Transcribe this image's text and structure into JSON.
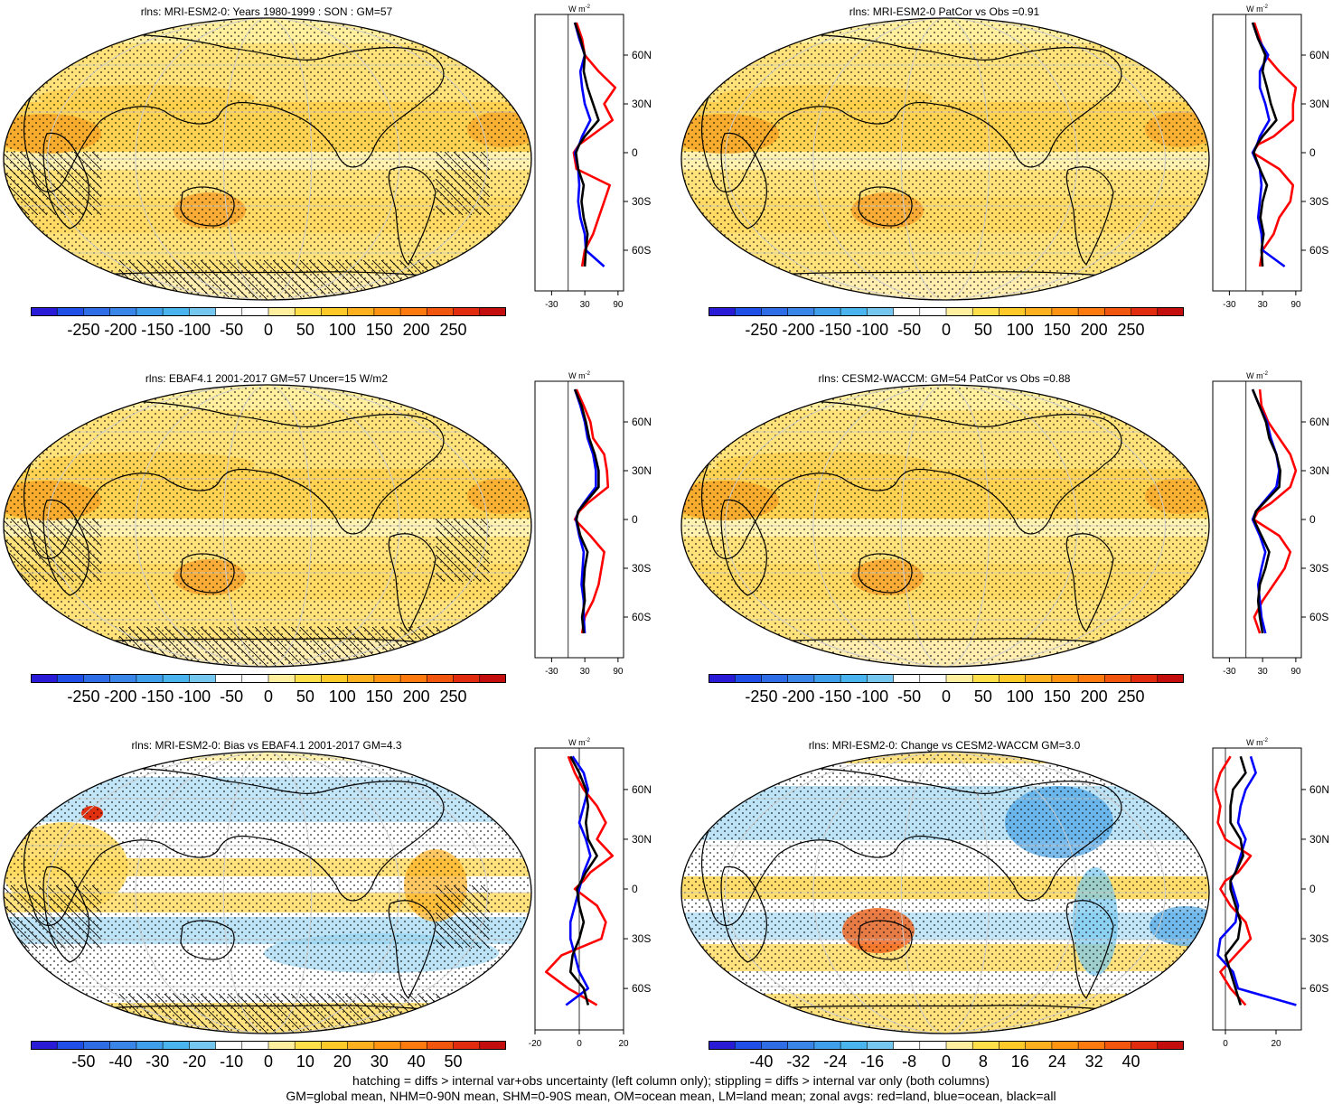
{
  "chart_data": [
    {
      "type": "heatmap",
      "title": "rlns: MRI-ESM2-0: Years 1980-1999 : SON : GM=57",
      "colorbar_ticks": [
        "-250",
        "-200",
        "-150",
        "-100",
        "-50",
        "0",
        "50",
        "100",
        "150",
        "200",
        "250"
      ],
      "zonal": {
        "unit": "W m",
        "unit_sup": "-2",
        "x_ticks": [
          "-30",
          "30",
          "90"
        ],
        "xlim": [
          -60,
          100
        ],
        "y_ticks": [
          "60N",
          "30N",
          "0",
          "30S",
          "60S"
        ],
        "series": [
          {
            "color": "#ff0000",
            "lat": [
              80,
              70,
              60,
              50,
              40,
              30,
              20,
              10,
              5,
              0,
              -10,
              -20,
              -30,
              -40,
              -50,
              -60,
              -70
            ],
            "values": [
              15,
              25,
              30,
              55,
              85,
              65,
              80,
              40,
              20,
              10,
              15,
              75,
              65,
              55,
              45,
              30,
              25
            ]
          },
          {
            "color": "#0000ff",
            "lat": [
              80,
              70,
              60,
              50,
              40,
              30,
              20,
              10,
              5,
              0,
              -10,
              -20,
              -30,
              -40,
              -50,
              -60,
              -70
            ],
            "values": [
              12,
              20,
              30,
              22,
              25,
              30,
              40,
              25,
              20,
              12,
              18,
              20,
              18,
              22,
              30,
              32,
              65
            ]
          },
          {
            "color": "#000000",
            "lat": [
              80,
              70,
              60,
              50,
              40,
              30,
              20,
              10,
              5,
              0,
              -10,
              -20,
              -30,
              -40,
              -50,
              -60,
              -70
            ],
            "values": [
              12,
              22,
              30,
              28,
              35,
              45,
              55,
              30,
              20,
              14,
              18,
              28,
              24,
              28,
              35,
              32,
              30
            ]
          }
        ]
      }
    },
    {
      "type": "heatmap",
      "title": "rlns: MRI-ESM2-0 PatCor vs Obs =0.91",
      "colorbar_ticks": [
        "-250",
        "-200",
        "-150",
        "-100",
        "-50",
        "0",
        "50",
        "100",
        "150",
        "200",
        "250"
      ],
      "zonal": {
        "unit": "W m",
        "unit_sup": "-2",
        "x_ticks": [
          "-30",
          "30",
          "90"
        ],
        "xlim": [
          -60,
          100
        ],
        "y_ticks": [
          "60N",
          "30N",
          "0",
          "30S",
          "60S"
        ],
        "series": [
          {
            "color": "#ff0000",
            "lat": [
              80,
              70,
              60,
              50,
              40,
              30,
              20,
              10,
              5,
              0,
              -10,
              -20,
              -30,
              -40,
              -50,
              -60,
              -70
            ],
            "values": [
              15,
              25,
              35,
              60,
              90,
              85,
              85,
              50,
              22,
              12,
              60,
              85,
              80,
              60,
              50,
              30,
              25
            ]
          },
          {
            "color": "#0000ff",
            "lat": [
              80,
              70,
              60,
              50,
              40,
              30,
              20,
              10,
              5,
              0,
              -10,
              -20,
              -30,
              -40,
              -50,
              -60,
              -70
            ],
            "values": [
              12,
              22,
              40,
              25,
              25,
              35,
              42,
              25,
              20,
              12,
              25,
              28,
              25,
              22,
              28,
              30,
              70
            ]
          },
          {
            "color": "#000000",
            "lat": [
              80,
              70,
              60,
              50,
              40,
              30,
              20,
              10,
              5,
              0,
              -10,
              -20,
              -30,
              -40,
              -50,
              -60,
              -70
            ],
            "values": [
              12,
              22,
              35,
              30,
              38,
              45,
              55,
              30,
              20,
              14,
              25,
              38,
              30,
              26,
              32,
              28,
              30
            ]
          }
        ]
      }
    },
    {
      "type": "heatmap",
      "title": "rlns: EBAF4.1 2001-2017 GM=57 Uncer=15 W/m2",
      "colorbar_ticks": [
        "-250",
        "-200",
        "-150",
        "-100",
        "-50",
        "0",
        "50",
        "100",
        "150",
        "200",
        "250"
      ],
      "zonal": {
        "unit": "W m",
        "unit_sup": "-2",
        "x_ticks": [
          "-30",
          "30",
          "90"
        ],
        "xlim": [
          -60,
          100
        ],
        "y_ticks": [
          "60N",
          "30N",
          "0",
          "30S",
          "60S"
        ],
        "series": [
          {
            "color": "#ff0000",
            "lat": [
              80,
              70,
              60,
              50,
              40,
              30,
              20,
              10,
              5,
              0,
              -10,
              -20,
              -30,
              -40,
              -50,
              -60,
              -70
            ],
            "values": [
              15,
              28,
              40,
              45,
              65,
              70,
              72,
              35,
              20,
              12,
              40,
              65,
              60,
              55,
              45,
              30,
              25
            ]
          },
          {
            "color": "#0000ff",
            "lat": [
              80,
              70,
              60,
              50,
              40,
              30,
              20,
              10,
              5,
              0,
              -10,
              -20,
              -30,
              -40,
              -50,
              -60,
              -70
            ],
            "values": [
              12,
              22,
              30,
              35,
              45,
              50,
              50,
              28,
              18,
              14,
              20,
              28,
              26,
              24,
              28,
              28,
              30
            ]
          },
          {
            "color": "#000000",
            "lat": [
              80,
              70,
              60,
              50,
              40,
              30,
              20,
              10,
              5,
              0,
              -10,
              -20,
              -30,
              -40,
              -50,
              -60,
              -70
            ],
            "values": [
              12,
              24,
              32,
              38,
              48,
              55,
              55,
              30,
              18,
              15,
              22,
              35,
              30,
              28,
              30,
              25,
              28
            ]
          }
        ]
      }
    },
    {
      "type": "heatmap",
      "title": "rlns: CESM2-WACCM: GM=54 PatCor vs Obs =0.88",
      "colorbar_ticks": [
        "-250",
        "-200",
        "-150",
        "-100",
        "-50",
        "0",
        "50",
        "100",
        "150",
        "200",
        "250"
      ],
      "zonal": {
        "unit": "W m",
        "unit_sup": "-2",
        "x_ticks": [
          "-30",
          "30",
          "90"
        ],
        "xlim": [
          -60,
          100
        ],
        "y_ticks": [
          "60N",
          "30N",
          "0",
          "30S",
          "60S"
        ],
        "series": [
          {
            "color": "#ff0000",
            "lat": [
              80,
              70,
              60,
              50,
              40,
              30,
              20,
              10,
              5,
              0,
              -10,
              -20,
              -30,
              -40,
              -50,
              -60,
              -70
            ],
            "values": [
              25,
              28,
              40,
              60,
              80,
              90,
              80,
              45,
              22,
              14,
              60,
              80,
              70,
              50,
              30,
              15,
              25
            ]
          },
          {
            "color": "#0000ff",
            "lat": [
              80,
              70,
              60,
              50,
              40,
              30,
              20,
              10,
              5,
              0,
              -10,
              -20,
              -30,
              -40,
              -50,
              -60,
              -70
            ],
            "values": [
              12,
              24,
              38,
              45,
              55,
              60,
              55,
              30,
              18,
              12,
              25,
              35,
              28,
              22,
              25,
              28,
              35
            ]
          },
          {
            "color": "#000000",
            "lat": [
              80,
              70,
              60,
              50,
              40,
              30,
              20,
              10,
              5,
              0,
              -10,
              -20,
              -30,
              -40,
              -50,
              -60,
              -70
            ],
            "values": [
              12,
              24,
              36,
              42,
              55,
              62,
              60,
              32,
              18,
              14,
              28,
              42,
              35,
              25,
              22,
              25,
              30
            ]
          }
        ]
      }
    },
    {
      "type": "heatmap",
      "title": "rlns: MRI-ESM2-0: Bias vs EBAF4.1 2001-2017  GM=4.3",
      "colorbar_ticks": [
        "-50",
        "-40",
        "-30",
        "-20",
        "-10",
        "0",
        "10",
        "20",
        "30",
        "40",
        "50"
      ],
      "zonal": {
        "unit": "W m",
        "unit_sup": "-2",
        "x_ticks": [
          "-20",
          "0",
          "20"
        ],
        "xlim": [
          -20,
          20
        ],
        "y_ticks": [
          "60N",
          "30N",
          "0",
          "30S",
          "60S"
        ],
        "series": [
          {
            "color": "#ff0000",
            "lat": [
              80,
              70,
              60,
              50,
              40,
              30,
              20,
              10,
              5,
              0,
              -10,
              -20,
              -30,
              -40,
              -50,
              -60,
              -70
            ],
            "values": [
              -5,
              -2,
              2,
              8,
              12,
              8,
              15,
              5,
              2,
              -2,
              8,
              12,
              10,
              -8,
              -15,
              -5,
              8
            ]
          },
          {
            "color": "#0000ff",
            "lat": [
              80,
              70,
              60,
              50,
              40,
              30,
              20,
              10,
              5,
              0,
              -10,
              -20,
              -30,
              -40,
              -50,
              -60,
              -70
            ],
            "values": [
              -3,
              2,
              4,
              2,
              0,
              3,
              5,
              2,
              1,
              0,
              -2,
              -4,
              -4,
              -2,
              0,
              4,
              -6
            ]
          },
          {
            "color": "#000000",
            "lat": [
              80,
              70,
              60,
              50,
              40,
              30,
              20,
              10,
              5,
              0,
              -10,
              -20,
              -30,
              -40,
              -50,
              -60,
              -70
            ],
            "values": [
              -4,
              0,
              3,
              4,
              3,
              4,
              8,
              3,
              1,
              -1,
              0,
              2,
              0,
              -3,
              -4,
              2,
              4
            ]
          }
        ]
      }
    },
    {
      "type": "heatmap",
      "title": "rlns: MRI-ESM2-0: Change vs CESM2-WACCM GM=3.0",
      "colorbar_ticks": [
        "-40",
        "-32",
        "-24",
        "-16",
        "-8",
        "0",
        "8",
        "16",
        "24",
        "32",
        "40"
      ],
      "zonal": {
        "unit": "W m",
        "unit_sup": "-2",
        "x_ticks": [
          "0",
          "20"
        ],
        "xlim": [
          -5,
          30
        ],
        "y_ticks": [
          "60N",
          "30N",
          "0",
          "30S",
          "60S"
        ],
        "series": [
          {
            "color": "#ff0000",
            "lat": [
              80,
              70,
              60,
              50,
              40,
              30,
              20,
              10,
              5,
              0,
              -10,
              -20,
              -30,
              -40,
              -50,
              -60,
              -70
            ],
            "values": [
              2,
              -2,
              -4,
              -2,
              -3,
              0,
              10,
              5,
              0,
              -2,
              2,
              8,
              10,
              4,
              -2,
              2,
              8
            ]
          },
          {
            "color": "#0000ff",
            "lat": [
              80,
              70,
              60,
              50,
              40,
              30,
              20,
              10,
              5,
              0,
              -10,
              -20,
              -30,
              -40,
              -50,
              -60,
              -70
            ],
            "values": [
              10,
              12,
              8,
              6,
              5,
              8,
              6,
              4,
              2,
              3,
              5,
              4,
              -2,
              -3,
              3,
              5,
              28
            ]
          },
          {
            "color": "#000000",
            "lat": [
              80,
              70,
              60,
              50,
              40,
              30,
              20,
              10,
              5,
              0,
              -10,
              -20,
              -30,
              -40,
              -50,
              -60,
              -70
            ],
            "values": [
              6,
              8,
              3,
              2,
              2,
              6,
              7,
              4,
              2,
              2,
              4,
              6,
              5,
              0,
              2,
              4,
              6
            ]
          }
        ]
      }
    }
  ],
  "colorbar_colors_main": [
    "#2a1bd6",
    "#1f4fe6",
    "#2f6de6",
    "#3a86e8",
    "#3f9fea",
    "#49b4ee",
    "#75c7f0",
    "#ffffff",
    "#ffffff",
    "#fff0a0",
    "#ffdf4a",
    "#ffc929",
    "#ffb01f",
    "#ff9412",
    "#ff7a0e",
    "#f2550d",
    "#e02b0e",
    "#c40e0e"
  ],
  "footer": {
    "line1": "hatching = diffs > internal var+obs uncertainty (left column only); stippling = diffs > internal var only (both columns)",
    "line2": "GM=global mean, NHM=0-90N mean, SHM=0-90S mean, OM=ocean mean, LM=land mean; zonal avgs: red=land, blue=ocean, black=all"
  }
}
